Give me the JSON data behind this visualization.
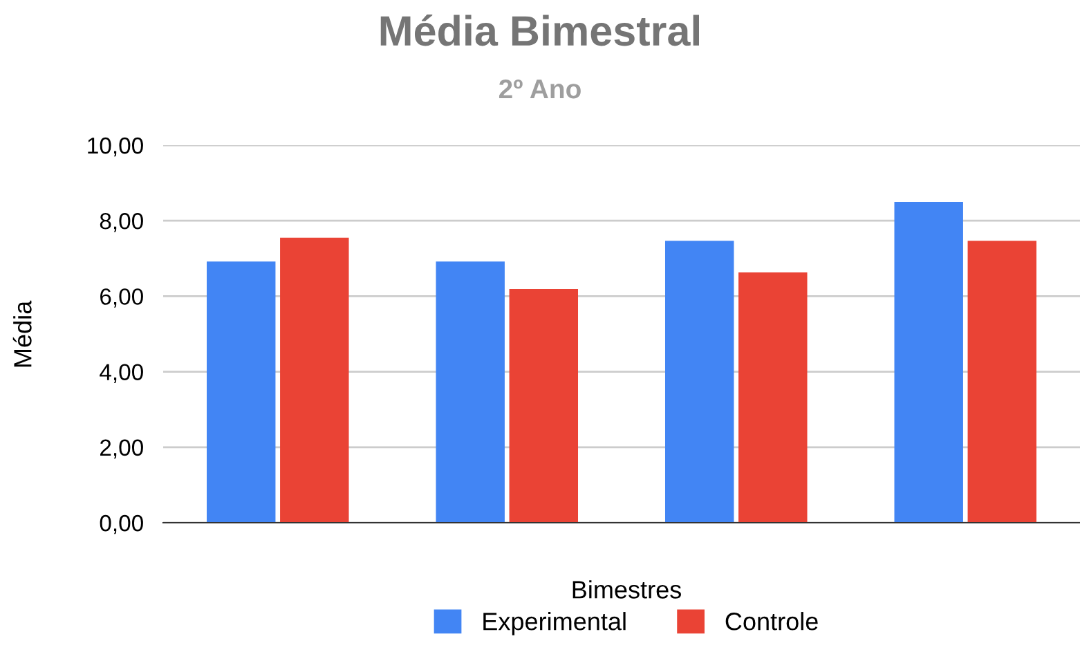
{
  "chart_data": {
    "type": "bar",
    "title": "Média Bimestral",
    "subtitle": "2º Ano",
    "xlabel": "Bimestres",
    "ylabel": "Média",
    "categories": [
      null,
      null,
      null,
      null
    ],
    "series": [
      {
        "name": "Experimental",
        "color": "#4285f4",
        "values": [
          6.92,
          6.92,
          7.47,
          8.5
        ]
      },
      {
        "name": "Controle",
        "color": "#ea4335",
        "values": [
          7.55,
          6.19,
          6.63,
          7.47
        ]
      }
    ],
    "ylim": [
      0,
      10
    ],
    "yticks": [
      {
        "value": 0,
        "label": "0,00"
      },
      {
        "value": 2,
        "label": "2,00"
      },
      {
        "value": 4,
        "label": "4,00"
      },
      {
        "value": 6,
        "label": "6,00"
      },
      {
        "value": 8,
        "label": "8,00"
      },
      {
        "value": 10,
        "label": "10,00"
      }
    ],
    "grid": "y",
    "legend": "bottom"
  }
}
